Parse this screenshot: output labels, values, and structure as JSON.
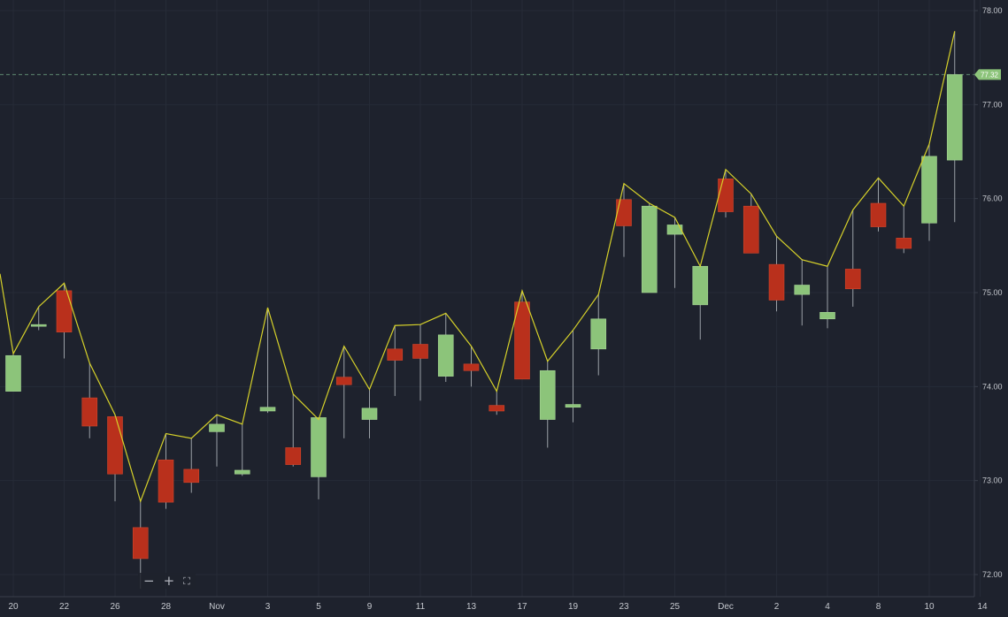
{
  "colors": {
    "background": "#1e222d",
    "grid": "#262b37",
    "axis_text": "#c5c8ce",
    "up": "#8cc47a",
    "down": "#b9301c",
    "wick": "#9aa0a6",
    "line": "#d6d12a",
    "last_price_bg": "#8cc47a",
    "last_price_line": "#5e8a70"
  },
  "toolbar": {
    "zoom_out_icon": "−",
    "zoom_in_icon": "+",
    "fit_icon": "⛶"
  },
  "chart_data": {
    "type": "candlestick",
    "y_axis": {
      "min": 71.9,
      "max": 78.1,
      "ticks": [
        72.0,
        73.0,
        74.0,
        75.0,
        76.0,
        77.0,
        78.0
      ],
      "tick_labels": [
        "72.00",
        "73.00",
        "74.00",
        "75.00",
        "76.00",
        "77.00",
        "78.00"
      ],
      "position": "right"
    },
    "x_axis": {
      "labels": [
        "20",
        "22",
        "26",
        "28",
        "Nov",
        "3",
        "5",
        "9",
        "11",
        "13",
        "17",
        "19",
        "23",
        "25",
        "Dec",
        "2",
        "4",
        "8",
        "10",
        "14"
      ],
      "label_slots": [
        0,
        2,
        4,
        6,
        8,
        10,
        12,
        14,
        16,
        18,
        20,
        22,
        24,
        26,
        28,
        30,
        32,
        34,
        36,
        38
      ]
    },
    "last_price": {
      "value": 77.32,
      "label": "77.32"
    },
    "grid": true,
    "candles": [
      {
        "open": 73.95,
        "high": 74.35,
        "low": 73.95,
        "close": 74.33
      },
      {
        "open": 74.65,
        "high": 74.85,
        "low": 74.6,
        "close": 74.66
      },
      {
        "open": 75.02,
        "high": 75.1,
        "low": 74.3,
        "close": 74.58
      },
      {
        "open": 73.88,
        "high": 74.25,
        "low": 73.45,
        "close": 73.58
      },
      {
        "open": 73.68,
        "high": 73.7,
        "low": 72.78,
        "close": 73.07
      },
      {
        "open": 72.5,
        "high": 72.78,
        "low": 71.85,
        "close": 72.17
      },
      {
        "open": 73.22,
        "high": 73.5,
        "low": 72.7,
        "close": 72.77
      },
      {
        "open": 73.12,
        "high": 73.45,
        "low": 72.87,
        "close": 72.98
      },
      {
        "open": 73.52,
        "high": 73.7,
        "low": 73.15,
        "close": 73.6
      },
      {
        "open": 73.07,
        "high": 73.6,
        "low": 73.05,
        "close": 73.11
      },
      {
        "open": 73.74,
        "high": 74.84,
        "low": 73.72,
        "close": 73.78
      },
      {
        "open": 73.35,
        "high": 73.92,
        "low": 73.15,
        "close": 73.17
      },
      {
        "open": 73.04,
        "high": 73.65,
        "low": 72.8,
        "close": 73.67
      },
      {
        "open": 74.1,
        "high": 74.43,
        "low": 73.45,
        "close": 74.02
      },
      {
        "open": 73.65,
        "high": 73.97,
        "low": 73.45,
        "close": 73.77
      },
      {
        "open": 74.4,
        "high": 74.65,
        "low": 73.9,
        "close": 74.28
      },
      {
        "open": 74.45,
        "high": 74.66,
        "low": 73.85,
        "close": 74.3
      },
      {
        "open": 74.11,
        "high": 74.78,
        "low": 74.05,
        "close": 74.55
      },
      {
        "open": 74.24,
        "high": 74.43,
        "low": 74.0,
        "close": 74.17
      },
      {
        "open": 73.8,
        "high": 73.95,
        "low": 73.7,
        "close": 73.74
      },
      {
        "open": 74.9,
        "high": 75.02,
        "low": 74.08,
        "close": 74.08
      },
      {
        "open": 73.65,
        "high": 74.27,
        "low": 73.35,
        "close": 74.17
      },
      {
        "open": 73.78,
        "high": 74.6,
        "low": 73.62,
        "close": 73.81
      },
      {
        "open": 74.4,
        "high": 74.98,
        "low": 74.12,
        "close": 74.72
      },
      {
        "open": 75.99,
        "high": 76.16,
        "low": 75.38,
        "close": 75.71
      },
      {
        "open": 75.0,
        "high": 75.95,
        "low": 75.0,
        "close": 75.92
      },
      {
        "open": 75.62,
        "high": 75.8,
        "low": 75.05,
        "close": 75.72
      },
      {
        "open": 74.87,
        "high": 75.28,
        "low": 74.5,
        "close": 75.28
      },
      {
        "open": 76.21,
        "high": 76.31,
        "low": 75.8,
        "close": 75.86
      },
      {
        "open": 75.92,
        "high": 76.05,
        "low": 75.42,
        "close": 75.42
      },
      {
        "open": 75.3,
        "high": 75.6,
        "low": 74.8,
        "close": 74.92
      },
      {
        "open": 74.98,
        "high": 75.35,
        "low": 74.65,
        "close": 75.08
      },
      {
        "open": 74.72,
        "high": 75.28,
        "low": 74.62,
        "close": 74.79
      },
      {
        "open": 75.25,
        "high": 75.88,
        "low": 74.85,
        "close": 75.04
      },
      {
        "open": 75.95,
        "high": 76.22,
        "low": 75.65,
        "close": 75.7
      },
      {
        "open": 75.58,
        "high": 75.92,
        "low": 75.42,
        "close": 75.47
      },
      {
        "open": 75.74,
        "high": 76.58,
        "low": 75.55,
        "close": 76.45
      },
      {
        "open": 76.41,
        "high": 77.78,
        "low": 75.75,
        "close": 77.32
      }
    ]
  }
}
